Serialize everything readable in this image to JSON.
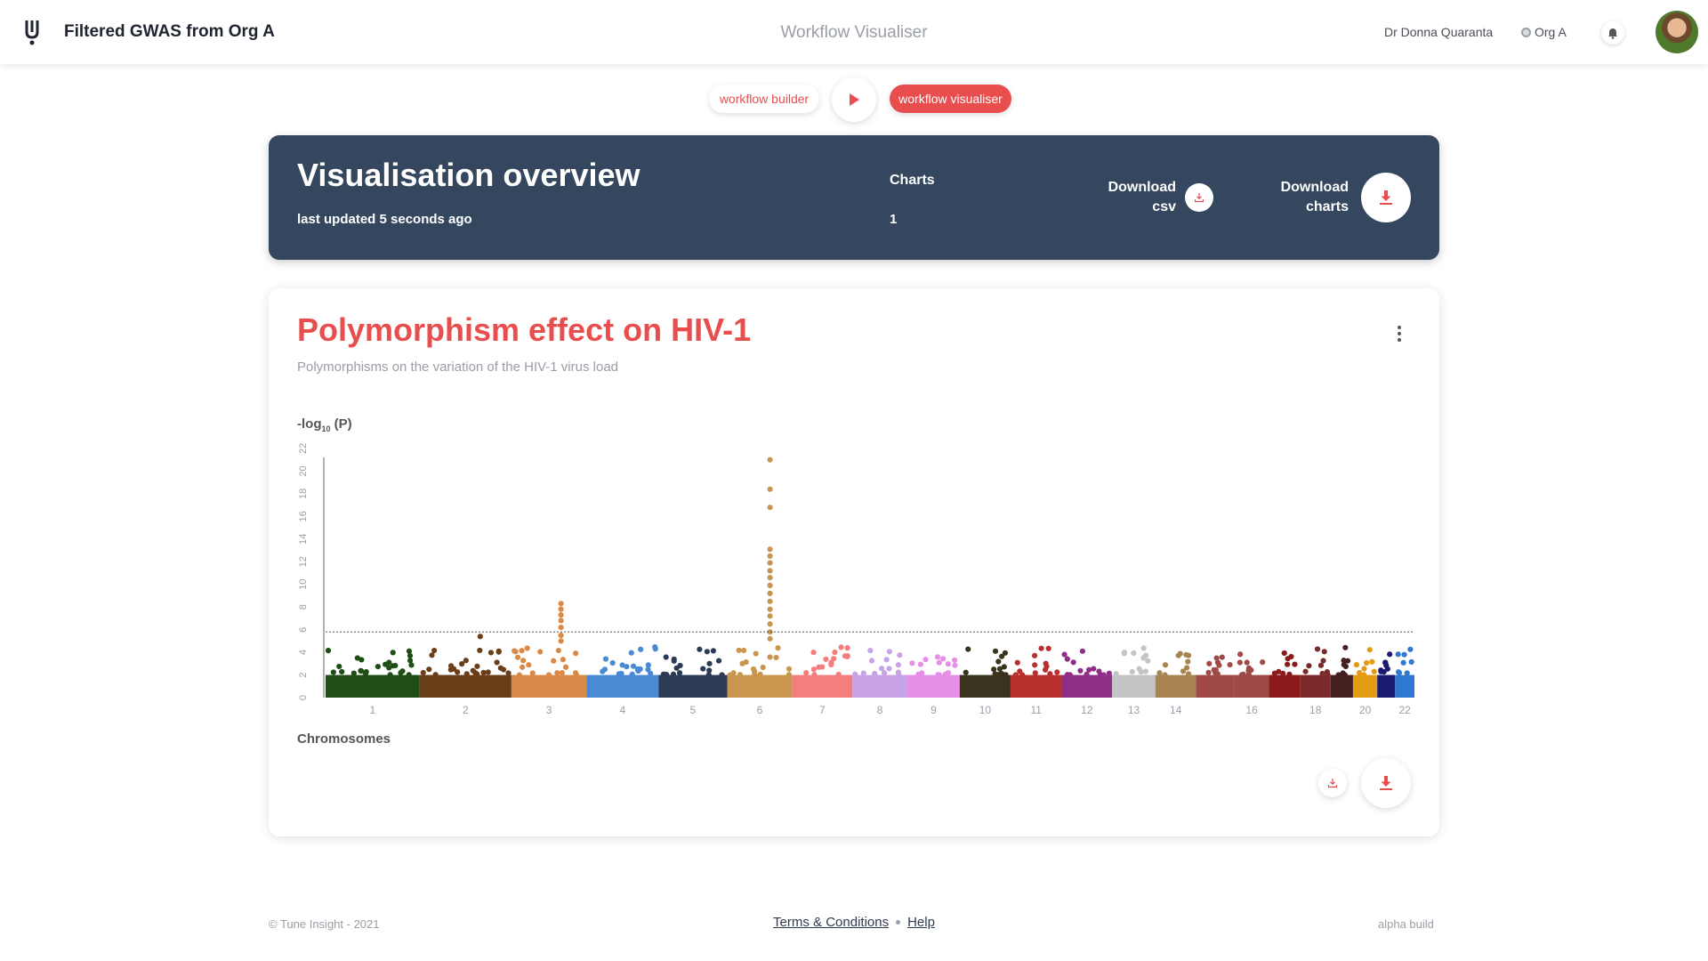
{
  "header": {
    "app_title": "Filtered GWAS from Org A",
    "center_title": "Workflow Visualiser",
    "user_name": "Dr Donna Quaranta",
    "org": "Org A"
  },
  "modes": {
    "builder_label": "workflow builder",
    "visualiser_label": "workflow visualiser"
  },
  "overview": {
    "title": "Visualisation overview",
    "updated": "last updated 5 seconds ago",
    "charts_label": "Charts",
    "charts_value": "1",
    "download_csv_line1": "Download",
    "download_csv_line2": "csv",
    "download_charts_line1": "Download",
    "download_charts_line2": "charts"
  },
  "card": {
    "title": "Polymorphism effect on HIV-1",
    "subtitle": "Polymorphisms on the variation of the HIV-1 virus load"
  },
  "chart_data": {
    "type": "scatter",
    "subtype": "manhattan",
    "ylabel_main": "-log",
    "ylabel_sub": "10",
    "ylabel_tail": " (P)",
    "xlabel": "Chromosomes",
    "ylim": [
      0,
      22
    ],
    "yticks": [
      0,
      2,
      4,
      6,
      8,
      10,
      12,
      14,
      16,
      18,
      20,
      22
    ],
    "threshold": 5.8,
    "threshold_style": "dotted",
    "chromosomes": [
      {
        "chr": "1",
        "label": "1",
        "size": 248,
        "color": "#1e4d15",
        "peaks": []
      },
      {
        "chr": "2",
        "label": "2",
        "size": 242,
        "color": "#6b3e1a",
        "peaks": [
          5.4
        ]
      },
      {
        "chr": "3",
        "label": "3",
        "size": 198,
        "color": "#d98a48",
        "peaks": [
          5.0,
          5.5,
          6.2,
          6.8,
          7.3,
          7.8,
          8.3
        ]
      },
      {
        "chr": "4",
        "label": "4",
        "size": 190,
        "color": "#4a8ad4",
        "peaks": []
      },
      {
        "chr": "5",
        "label": "5",
        "size": 181,
        "color": "#2b3b55",
        "peaks": []
      },
      {
        "chr": "6",
        "label": "6",
        "size": 171,
        "color": "#c9964f",
        "peaks": [
          5.2,
          5.8,
          6.5,
          7.2,
          7.8,
          8.5,
          9.2,
          9.9,
          10.6,
          11.2,
          11.9,
          12.5,
          13.1,
          16.8,
          18.4,
          21.0
        ]
      },
      {
        "chr": "7",
        "label": "7",
        "size": 159,
        "color": "#f47d7d",
        "peaks": []
      },
      {
        "chr": "8",
        "label": "8",
        "size": 145,
        "color": "#c8a3e8",
        "peaks": []
      },
      {
        "chr": "9",
        "label": "9",
        "size": 138,
        "color": "#e58fe6",
        "peaks": []
      },
      {
        "chr": "10",
        "label": "10",
        "size": 134,
        "color": "#3a331d",
        "peaks": []
      },
      {
        "chr": "11",
        "label": "11",
        "size": 135,
        "color": "#b8302e",
        "peaks": []
      },
      {
        "chr": "12",
        "label": "12",
        "size": 133,
        "color": "#8f2e86",
        "peaks": []
      },
      {
        "chr": "13",
        "label": "13",
        "size": 114,
        "color": "#c4c4c4",
        "peaks": []
      },
      {
        "chr": "14",
        "label": "14",
        "size": 107,
        "color": "#a88550",
        "peaks": []
      },
      {
        "chr": "15",
        "label": "",
        "size": 102,
        "color": "#a04a48",
        "peaks": []
      },
      {
        "chr": "16",
        "label": "16",
        "size": 90,
        "color": "#a04a48",
        "peaks": []
      },
      {
        "chr": "17",
        "label": "",
        "size": 83,
        "color": "#8c1a1a",
        "peaks": []
      },
      {
        "chr": "18",
        "label": "18",
        "size": 80,
        "color": "#7a2a2a",
        "peaks": []
      },
      {
        "chr": "19",
        "label": "",
        "size": 59,
        "color": "#452020",
        "peaks": []
      },
      {
        "chr": "20",
        "label": "20",
        "size": 64,
        "color": "#e39b12",
        "peaks": []
      },
      {
        "chr": "21",
        "label": "",
        "size": 47,
        "color": "#1a1a6e",
        "peaks": []
      },
      {
        "chr": "22",
        "label": "22",
        "size": 51,
        "color": "#2f78d1",
        "peaks": []
      }
    ],
    "baseline_max": 4.5
  },
  "footer": {
    "copyright": "© Tune Insight - 2021",
    "terms": "Terms & Conditions",
    "help": "Help",
    "build": "alpha build"
  },
  "colors": {
    "accent": "#e84e4e",
    "banner": "#34475e"
  },
  "icons": [
    "logo-icon",
    "bell-icon",
    "play-icon",
    "download-icon",
    "kebab-menu-icon"
  ]
}
